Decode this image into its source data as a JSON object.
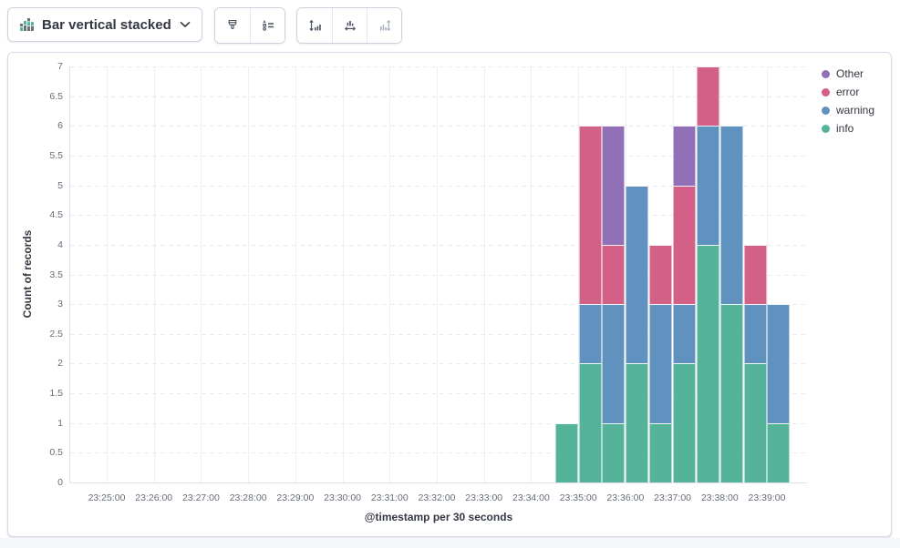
{
  "toolbar": {
    "chart_type": {
      "label": "Bar vertical stacked",
      "icon": "bar-vertical-stacked-icon"
    },
    "buttons": [
      {
        "icon": "brush-icon"
      },
      {
        "icon": "legend-list-icon"
      },
      {
        "icon": "left-axis-icon"
      },
      {
        "icon": "bottom-axis-icon"
      },
      {
        "icon": "right-axis-icon",
        "disabled": true
      }
    ]
  },
  "legend": {
    "position": "right",
    "items": [
      {
        "label": "Other",
        "color": "#9170B8"
      },
      {
        "label": "error",
        "color": "#D36086"
      },
      {
        "label": "warning",
        "color": "#6092C0"
      },
      {
        "label": "info",
        "color": "#54B399"
      }
    ]
  },
  "chart_data": {
    "type": "bar",
    "stacked": true,
    "orientation": "vertical",
    "title": "",
    "xlabel": "@timestamp per 30 seconds",
    "ylabel": "Count of records",
    "ylim": [
      0,
      7
    ],
    "y_tick_step": 0.5,
    "grid": true,
    "legend_position": "right",
    "x_axis_ticks": [
      "23:25:00",
      "23:26:00",
      "23:27:00",
      "23:28:00",
      "23:29:00",
      "23:30:00",
      "23:31:00",
      "23:32:00",
      "23:33:00",
      "23:34:00",
      "23:35:00",
      "23:36:00",
      "23:37:00",
      "23:38:00",
      "23:39:00"
    ],
    "categories": [
      "23:34:30",
      "23:35:00",
      "23:35:30",
      "23:36:00",
      "23:36:30",
      "23:37:00",
      "23:37:30",
      "23:38:00",
      "23:38:30",
      "23:39:00"
    ],
    "series": [
      {
        "name": "info",
        "color": "#54B399",
        "values": [
          1,
          2,
          1,
          2,
          1,
          2,
          4,
          3,
          2,
          1
        ]
      },
      {
        "name": "warning",
        "color": "#6092C0",
        "values": [
          0,
          1,
          2,
          3,
          2,
          1,
          2,
          3,
          1,
          2
        ]
      },
      {
        "name": "error",
        "color": "#D36086",
        "values": [
          0,
          3,
          1,
          0,
          1,
          2,
          1,
          0,
          1,
          0
        ]
      },
      {
        "name": "Other",
        "color": "#9170B8",
        "values": [
          0,
          0,
          2,
          0,
          0,
          1,
          0,
          0,
          0,
          0
        ]
      }
    ],
    "bar_totals": [
      1,
      6,
      6,
      5,
      4,
      6,
      7,
      6,
      4,
      3
    ]
  },
  "colors": {
    "panel_border": "#D3DAE6",
    "grid_vertical": "#ECEFF5",
    "grid_horizontal": "#E6EAF1",
    "axis_line": "#DFE4EC",
    "tick_label": "#666D78",
    "text": "#343741",
    "icon_gray": "#69707D",
    "icon_green": "#54B399",
    "disabled_icon": "#A9B2C3"
  }
}
